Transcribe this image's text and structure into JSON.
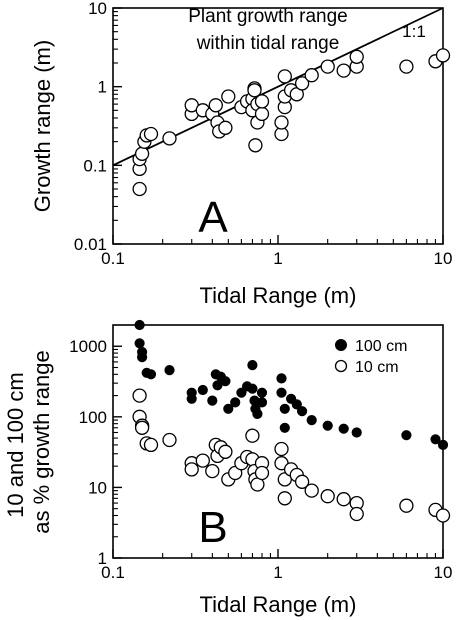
{
  "chart_data": [
    {
      "panel": "A",
      "type": "scatter",
      "annotation_lines": [
        "Plant growth range",
        "within tidal range"
      ],
      "reference_line_label": "1:1",
      "reference_line": [
        [
          0.1,
          0.1
        ],
        [
          10,
          10
        ]
      ],
      "xlabel": "Tidal Range (m)",
      "ylabel": "Growth range (m)",
      "x_scale": "log",
      "y_scale": "log",
      "xlim": [
        0.1,
        10
      ],
      "ylim": [
        0.01,
        10
      ],
      "x_ticks": [
        "0.1",
        "1",
        "10"
      ],
      "y_ticks": [
        "0.01",
        "0.1",
        "1",
        "10"
      ],
      "grid": false,
      "series": [
        {
          "marker": "open-circle",
          "points": [
            [
              0.145,
              0.05
            ],
            [
              0.145,
              0.09
            ],
            [
              0.145,
              0.12
            ],
            [
              0.15,
              0.14
            ],
            [
              0.155,
              0.2
            ],
            [
              0.16,
              0.24
            ],
            [
              0.17,
              0.25
            ],
            [
              0.22,
              0.22
            ],
            [
              0.3,
              0.45
            ],
            [
              0.3,
              0.58
            ],
            [
              0.35,
              0.5
            ],
            [
              0.4,
              0.45
            ],
            [
              0.42,
              0.58
            ],
            [
              0.43,
              0.35
            ],
            [
              0.44,
              0.27
            ],
            [
              0.48,
              0.3
            ],
            [
              0.5,
              0.75
            ],
            [
              0.6,
              0.55
            ],
            [
              0.65,
              0.65
            ],
            [
              0.7,
              0.7
            ],
            [
              0.7,
              0.5
            ],
            [
              0.72,
              0.95
            ],
            [
              0.72,
              0.9
            ],
            [
              0.73,
              0.18
            ],
            [
              0.75,
              0.35
            ],
            [
              0.75,
              0.6
            ],
            [
              0.8,
              0.45
            ],
            [
              0.8,
              0.65
            ],
            [
              1.05,
              0.25
            ],
            [
              1.05,
              0.35
            ],
            [
              1.1,
              0.55
            ],
            [
              1.1,
              0.75
            ],
            [
              1.1,
              1.35
            ],
            [
              1.2,
              0.9
            ],
            [
              1.3,
              0.8
            ],
            [
              1.4,
              1.1
            ],
            [
              1.6,
              1.4
            ],
            [
              2.0,
              1.8
            ],
            [
              2.5,
              1.6
            ],
            [
              3.0,
              1.8
            ],
            [
              3.0,
              2.4
            ],
            [
              6.0,
              1.8
            ],
            [
              9.0,
              2.1
            ],
            [
              10.0,
              2.5
            ]
          ]
        }
      ]
    },
    {
      "panel": "B",
      "type": "scatter",
      "xlabel": "Tidal Range (m)",
      "ylabel_lines": [
        "10 and 100 cm",
        "as % growth range"
      ],
      "x_scale": "log",
      "y_scale": "log",
      "xlim": [
        0.1,
        10
      ],
      "ylim": [
        1,
        2000
      ],
      "x_ticks": [
        "0.1",
        "1",
        "10"
      ],
      "y_ticks": [
        "1",
        "10",
        "100",
        "1000"
      ],
      "legend_position": "top-right",
      "grid": false,
      "series": [
        {
          "name": "100 cm",
          "marker": "filled-circle",
          "points": [
            [
              0.145,
              2000
            ],
            [
              0.145,
              1100
            ],
            [
              0.15,
              830
            ],
            [
              0.15,
              700
            ],
            [
              0.16,
              420
            ],
            [
              0.17,
              400
            ],
            [
              0.22,
              460
            ],
            [
              0.3,
              220
            ],
            [
              0.3,
              180
            ],
            [
              0.35,
              240
            ],
            [
              0.4,
              170
            ],
            [
              0.42,
              400
            ],
            [
              0.43,
              280
            ],
            [
              0.45,
              370
            ],
            [
              0.48,
              320
            ],
            [
              0.5,
              130
            ],
            [
              0.55,
              160
            ],
            [
              0.6,
              220
            ],
            [
              0.65,
              270
            ],
            [
              0.7,
              540
            ],
            [
              0.7,
              250
            ],
            [
              0.72,
              170
            ],
            [
              0.73,
              130
            ],
            [
              0.75,
              110
            ],
            [
              0.8,
              220
            ],
            [
              0.8,
              160
            ],
            [
              1.05,
              350
            ],
            [
              1.05,
              220
            ],
            [
              1.1,
              130
            ],
            [
              1.1,
              70
            ],
            [
              1.2,
              180
            ],
            [
              1.3,
              150
            ],
            [
              1.4,
              120
            ],
            [
              1.6,
              90
            ],
            [
              2.0,
              75
            ],
            [
              2.5,
              68
            ],
            [
              3.0,
              60
            ],
            [
              6.0,
              55
            ],
            [
              9.0,
              48
            ],
            [
              10.0,
              40
            ]
          ]
        },
        {
          "name": "10 cm",
          "marker": "open-circle",
          "points": [
            [
              0.145,
              200
            ],
            [
              0.145,
              100
            ],
            [
              0.15,
              75
            ],
            [
              0.15,
              70
            ],
            [
              0.16,
              42
            ],
            [
              0.17,
              40
            ],
            [
              0.22,
              47
            ],
            [
              0.3,
              22
            ],
            [
              0.3,
              18
            ],
            [
              0.35,
              24
            ],
            [
              0.4,
              17
            ],
            [
              0.42,
              40
            ],
            [
              0.43,
              28
            ],
            [
              0.45,
              37
            ],
            [
              0.48,
              32
            ],
            [
              0.5,
              13
            ],
            [
              0.55,
              16
            ],
            [
              0.6,
              22
            ],
            [
              0.65,
              27
            ],
            [
              0.7,
              54
            ],
            [
              0.7,
              25
            ],
            [
              0.72,
              17
            ],
            [
              0.73,
              13
            ],
            [
              0.75,
              11
            ],
            [
              0.8,
              22
            ],
            [
              0.8,
              16
            ],
            [
              1.05,
              35
            ],
            [
              1.05,
              22
            ],
            [
              1.1,
              13
            ],
            [
              1.1,
              7
            ],
            [
              1.2,
              18
            ],
            [
              1.3,
              15
            ],
            [
              1.4,
              12
            ],
            [
              1.6,
              9
            ],
            [
              2.0,
              7.5
            ],
            [
              2.5,
              6.8
            ],
            [
              3.0,
              6
            ],
            [
              3.0,
              4.2
            ],
            [
              6.0,
              5.5
            ],
            [
              9.0,
              4.8
            ],
            [
              10.0,
              4
            ]
          ]
        }
      ]
    }
  ]
}
